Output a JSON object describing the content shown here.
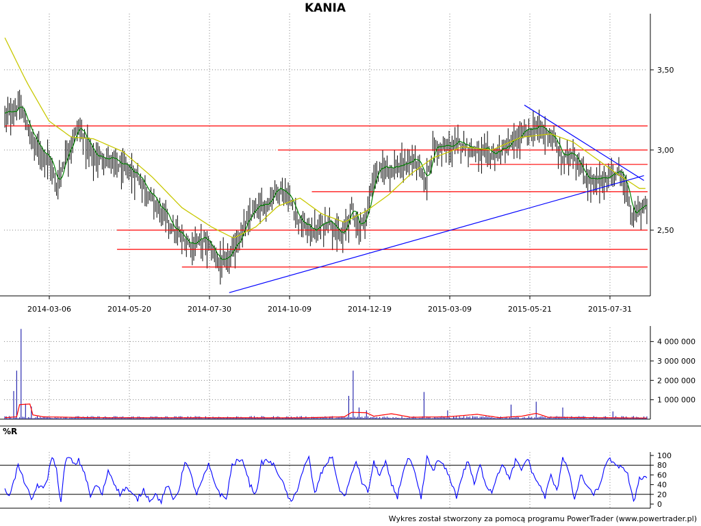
{
  "title": "KANIA",
  "footer": "Wykres został stworzony za pomocą programu PowerTrader (www.powertrader.pl)",
  "colors": {
    "candle": "#000000",
    "short_ma": "#008000",
    "long_ma": "#c8c800",
    "support_resistance": "#ff0000",
    "trendline": "#0000ff",
    "volume_bar": "#0000a0",
    "volume_ma": "#ff0000",
    "williams_r": "#0000ff",
    "grid": "#808080"
  },
  "chart_data": [
    {
      "id": "price",
      "type": "line",
      "title": "KANIA",
      "x_tick_labels": [
        "2014-03-06",
        "2014-05-20",
        "2014-07-30",
        "2014-10-09",
        "2014-12-19",
        "2015-03-09",
        "2015-05-21",
        "2015-07-31"
      ],
      "y_tick_labels": [
        "3,50",
        "3,00",
        "2,50"
      ],
      "y_ticks": [
        3.5,
        3.0,
        2.5
      ],
      "ylim": [
        2.09,
        3.85
      ],
      "close_keypoints": [
        {
          "d": 0,
          "v": 3.22
        },
        {
          "d": 10,
          "v": 3.28
        },
        {
          "d": 20,
          "v": 3.05
        },
        {
          "d": 30,
          "v": 2.95
        },
        {
          "d": 35,
          "v": 2.78
        },
        {
          "d": 42,
          "v": 3.0
        },
        {
          "d": 50,
          "v": 3.15
        },
        {
          "d": 60,
          "v": 2.97
        },
        {
          "d": 70,
          "v": 2.95
        },
        {
          "d": 80,
          "v": 2.9
        },
        {
          "d": 90,
          "v": 2.85
        },
        {
          "d": 100,
          "v": 2.7
        },
        {
          "d": 108,
          "v": 2.6
        },
        {
          "d": 115,
          "v": 2.5
        },
        {
          "d": 125,
          "v": 2.42
        },
        {
          "d": 135,
          "v": 2.45
        },
        {
          "d": 145,
          "v": 2.32
        },
        {
          "d": 150,
          "v": 2.3
        },
        {
          "d": 158,
          "v": 2.45
        },
        {
          "d": 168,
          "v": 2.62
        },
        {
          "d": 178,
          "v": 2.68
        },
        {
          "d": 185,
          "v": 2.78
        },
        {
          "d": 192,
          "v": 2.72
        },
        {
          "d": 200,
          "v": 2.55
        },
        {
          "d": 210,
          "v": 2.5
        },
        {
          "d": 220,
          "v": 2.58
        },
        {
          "d": 228,
          "v": 2.45
        },
        {
          "d": 235,
          "v": 2.65
        },
        {
          "d": 240,
          "v": 2.52
        },
        {
          "d": 245,
          "v": 2.6
        },
        {
          "d": 250,
          "v": 2.85
        },
        {
          "d": 258,
          "v": 2.9
        },
        {
          "d": 268,
          "v": 2.9
        },
        {
          "d": 278,
          "v": 2.95
        },
        {
          "d": 285,
          "v": 2.8
        },
        {
          "d": 290,
          "v": 3.02
        },
        {
          "d": 300,
          "v": 3.02
        },
        {
          "d": 310,
          "v": 3.05
        },
        {
          "d": 320,
          "v": 3.0
        },
        {
          "d": 330,
          "v": 2.98
        },
        {
          "d": 340,
          "v": 3.02
        },
        {
          "d": 350,
          "v": 3.1
        },
        {
          "d": 360,
          "v": 3.15
        },
        {
          "d": 370,
          "v": 3.1
        },
        {
          "d": 378,
          "v": 2.95
        },
        {
          "d": 385,
          "v": 3.0
        },
        {
          "d": 392,
          "v": 2.85
        },
        {
          "d": 400,
          "v": 2.8
        },
        {
          "d": 410,
          "v": 2.85
        },
        {
          "d": 418,
          "v": 2.87
        },
        {
          "d": 425,
          "v": 2.58
        },
        {
          "d": 430,
          "v": 2.65
        }
      ],
      "long_ma_keypoints": [
        {
          "d": 0,
          "v": 3.7
        },
        {
          "d": 15,
          "v": 3.42
        },
        {
          "d": 30,
          "v": 3.18
        },
        {
          "d": 45,
          "v": 3.08
        },
        {
          "d": 60,
          "v": 3.07
        },
        {
          "d": 80,
          "v": 2.99
        },
        {
          "d": 100,
          "v": 2.83
        },
        {
          "d": 120,
          "v": 2.64
        },
        {
          "d": 140,
          "v": 2.52
        },
        {
          "d": 155,
          "v": 2.45
        },
        {
          "d": 170,
          "v": 2.52
        },
        {
          "d": 185,
          "v": 2.65
        },
        {
          "d": 200,
          "v": 2.7
        },
        {
          "d": 215,
          "v": 2.6
        },
        {
          "d": 230,
          "v": 2.55
        },
        {
          "d": 245,
          "v": 2.62
        },
        {
          "d": 260,
          "v": 2.72
        },
        {
          "d": 275,
          "v": 2.85
        },
        {
          "d": 290,
          "v": 2.95
        },
        {
          "d": 310,
          "v": 3.02
        },
        {
          "d": 330,
          "v": 3.0
        },
        {
          "d": 350,
          "v": 3.08
        },
        {
          "d": 370,
          "v": 3.1
        },
        {
          "d": 385,
          "v": 3.05
        },
        {
          "d": 400,
          "v": 2.95
        },
        {
          "d": 415,
          "v": 2.85
        },
        {
          "d": 430,
          "v": 2.76
        }
      ],
      "horizontal_levels": [
        {
          "v": 3.15,
          "d_from": 0,
          "d_to": 430
        },
        {
          "v": 3.0,
          "d_from": 185,
          "d_to": 430
        },
        {
          "v": 2.91,
          "d_from": 315,
          "d_to": 430
        },
        {
          "v": 2.74,
          "d_from": 208,
          "d_to": 430
        },
        {
          "v": 2.5,
          "d_from": 76,
          "d_to": 430
        },
        {
          "v": 2.38,
          "d_from": 76,
          "d_to": 430
        },
        {
          "v": 2.27,
          "d_from": 120,
          "d_to": 430
        }
      ],
      "trendlines": [
        {
          "d1": 152,
          "v1": 2.11,
          "d2": 433,
          "v2": 2.84
        },
        {
          "d1": 352,
          "v1": 3.28,
          "d2": 433,
          "v2": 2.81
        }
      ]
    },
    {
      "id": "volume",
      "type": "bar",
      "y_tick_labels": [
        "4 000 000",
        "3 000 000",
        "2 000 000",
        "1 000 000"
      ],
      "y_ticks": [
        4000000,
        3000000,
        2000000,
        1000000
      ],
      "ylim": [
        0,
        4800000
      ],
      "spikes": [
        {
          "d": 6,
          "v": 1450000
        },
        {
          "d": 8,
          "v": 2500000
        },
        {
          "d": 11,
          "v": 4650000
        },
        {
          "d": 14,
          "v": 800000
        },
        {
          "d": 18,
          "v": 650000
        },
        {
          "d": 233,
          "v": 1200000
        },
        {
          "d": 236,
          "v": 2500000
        },
        {
          "d": 240,
          "v": 600000
        },
        {
          "d": 245,
          "v": 450000
        },
        {
          "d": 284,
          "v": 1400000
        },
        {
          "d": 300,
          "v": 450000
        },
        {
          "d": 343,
          "v": 750000
        },
        {
          "d": 360,
          "v": 900000
        },
        {
          "d": 378,
          "v": 600000
        },
        {
          "d": 412,
          "v": 400000
        }
      ],
      "ma_keypoints": [
        {
          "d": 0,
          "v": 80000
        },
        {
          "d": 8,
          "v": 120000
        },
        {
          "d": 10,
          "v": 750000
        },
        {
          "d": 17,
          "v": 780000
        },
        {
          "d": 19,
          "v": 220000
        },
        {
          "d": 26,
          "v": 120000
        },
        {
          "d": 60,
          "v": 80000
        },
        {
          "d": 200,
          "v": 70000
        },
        {
          "d": 230,
          "v": 120000
        },
        {
          "d": 235,
          "v": 350000
        },
        {
          "d": 245,
          "v": 330000
        },
        {
          "d": 250,
          "v": 150000
        },
        {
          "d": 262,
          "v": 280000
        },
        {
          "d": 275,
          "v": 100000
        },
        {
          "d": 300,
          "v": 120000
        },
        {
          "d": 320,
          "v": 250000
        },
        {
          "d": 335,
          "v": 80000
        },
        {
          "d": 350,
          "v": 150000
        },
        {
          "d": 360,
          "v": 300000
        },
        {
          "d": 368,
          "v": 100000
        },
        {
          "d": 400,
          "v": 80000
        },
        {
          "d": 430,
          "v": 60000
        }
      ]
    },
    {
      "id": "williams_r",
      "type": "line",
      "label": "%R",
      "y_tick_labels": [
        "100",
        "80",
        "60",
        "40",
        "20",
        "0"
      ],
      "y_ticks": [
        100,
        80,
        60,
        40,
        20,
        0
      ],
      "ylim": [
        0,
        100
      ],
      "reference_lines": [
        80,
        20
      ],
      "keypoints": [
        {
          "d": 0,
          "v": 28
        },
        {
          "d": 3,
          "v": 20
        },
        {
          "d": 6,
          "v": 45
        },
        {
          "d": 9,
          "v": 80
        },
        {
          "d": 12,
          "v": 55
        },
        {
          "d": 15,
          "v": 35
        },
        {
          "d": 18,
          "v": 5
        },
        {
          "d": 22,
          "v": 40
        },
        {
          "d": 26,
          "v": 30
        },
        {
          "d": 29,
          "v": 55
        },
        {
          "d": 32,
          "v": 100
        },
        {
          "d": 35,
          "v": 70
        },
        {
          "d": 38,
          "v": 2
        },
        {
          "d": 41,
          "v": 90
        },
        {
          "d": 44,
          "v": 95
        },
        {
          "d": 47,
          "v": 80
        },
        {
          "d": 50,
          "v": 90
        },
        {
          "d": 54,
          "v": 65
        },
        {
          "d": 58,
          "v": 15
        },
        {
          "d": 62,
          "v": 40
        },
        {
          "d": 66,
          "v": 20
        },
        {
          "d": 70,
          "v": 70
        },
        {
          "d": 74,
          "v": 45
        },
        {
          "d": 78,
          "v": 20
        },
        {
          "d": 82,
          "v": 35
        },
        {
          "d": 86,
          "v": 20
        },
        {
          "d": 90,
          "v": 10
        },
        {
          "d": 94,
          "v": 30
        },
        {
          "d": 98,
          "v": 8
        },
        {
          "d": 102,
          "v": 20
        },
        {
          "d": 106,
          "v": 5
        },
        {
          "d": 110,
          "v": 40
        },
        {
          "d": 114,
          "v": 8
        },
        {
          "d": 118,
          "v": 30
        },
        {
          "d": 122,
          "v": 90
        },
        {
          "d": 126,
          "v": 60
        },
        {
          "d": 130,
          "v": 20
        },
        {
          "d": 134,
          "v": 50
        },
        {
          "d": 138,
          "v": 80
        },
        {
          "d": 142,
          "v": 45
        },
        {
          "d": 146,
          "v": 20
        },
        {
          "d": 150,
          "v": 10
        },
        {
          "d": 154,
          "v": 80
        },
        {
          "d": 158,
          "v": 90
        },
        {
          "d": 162,
          "v": 85
        },
        {
          "d": 166,
          "v": 40
        },
        {
          "d": 170,
          "v": 20
        },
        {
          "d": 174,
          "v": 85
        },
        {
          "d": 178,
          "v": 90
        },
        {
          "d": 182,
          "v": 80
        },
        {
          "d": 186,
          "v": 60
        },
        {
          "d": 190,
          "v": 30
        },
        {
          "d": 194,
          "v": 1
        },
        {
          "d": 198,
          "v": 30
        },
        {
          "d": 202,
          "v": 70
        },
        {
          "d": 206,
          "v": 95
        },
        {
          "d": 210,
          "v": 20
        },
        {
          "d": 214,
          "v": 60
        },
        {
          "d": 218,
          "v": 85
        },
        {
          "d": 222,
          "v": 98
        },
        {
          "d": 226,
          "v": 35
        },
        {
          "d": 230,
          "v": 15
        },
        {
          "d": 234,
          "v": 50
        },
        {
          "d": 238,
          "v": 90
        },
        {
          "d": 242,
          "v": 45
        },
        {
          "d": 246,
          "v": 25
        },
        {
          "d": 250,
          "v": 85
        },
        {
          "d": 254,
          "v": 60
        },
        {
          "d": 258,
          "v": 85
        },
        {
          "d": 262,
          "v": 40
        },
        {
          "d": 266,
          "v": 15
        },
        {
          "d": 270,
          "v": 70
        },
        {
          "d": 274,
          "v": 95
        },
        {
          "d": 278,
          "v": 60
        },
        {
          "d": 282,
          "v": 10
        },
        {
          "d": 286,
          "v": 95
        },
        {
          "d": 290,
          "v": 70
        },
        {
          "d": 294,
          "v": 90
        },
        {
          "d": 298,
          "v": 75
        },
        {
          "d": 302,
          "v": 50
        },
        {
          "d": 306,
          "v": 15
        },
        {
          "d": 310,
          "v": 60
        },
        {
          "d": 314,
          "v": 90
        },
        {
          "d": 318,
          "v": 40
        },
        {
          "d": 322,
          "v": 80
        },
        {
          "d": 326,
          "v": 40
        },
        {
          "d": 330,
          "v": 25
        },
        {
          "d": 334,
          "v": 65
        },
        {
          "d": 338,
          "v": 80
        },
        {
          "d": 342,
          "v": 50
        },
        {
          "d": 346,
          "v": 90
        },
        {
          "d": 350,
          "v": 70
        },
        {
          "d": 354,
          "v": 95
        },
        {
          "d": 358,
          "v": 60
        },
        {
          "d": 362,
          "v": 40
        },
        {
          "d": 366,
          "v": 15
        },
        {
          "d": 370,
          "v": 60
        },
        {
          "d": 374,
          "v": 25
        },
        {
          "d": 378,
          "v": 98
        },
        {
          "d": 382,
          "v": 70
        },
        {
          "d": 386,
          "v": 5
        },
        {
          "d": 390,
          "v": 60
        },
        {
          "d": 394,
          "v": 40
        },
        {
          "d": 398,
          "v": 20
        },
        {
          "d": 402,
          "v": 30
        },
        {
          "d": 406,
          "v": 70
        },
        {
          "d": 410,
          "v": 95
        },
        {
          "d": 414,
          "v": 75
        },
        {
          "d": 418,
          "v": 80
        },
        {
          "d": 422,
          "v": 60
        },
        {
          "d": 426,
          "v": 2
        },
        {
          "d": 430,
          "v": 55
        }
      ]
    }
  ]
}
